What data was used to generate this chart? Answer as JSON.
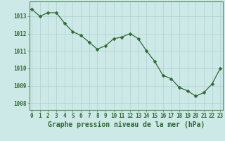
{
  "x": [
    0,
    1,
    2,
    3,
    4,
    5,
    6,
    7,
    8,
    9,
    10,
    11,
    12,
    13,
    14,
    15,
    16,
    17,
    18,
    19,
    20,
    21,
    22,
    23
  ],
  "y": [
    1013.4,
    1013.0,
    1013.2,
    1013.2,
    1012.6,
    1012.1,
    1011.9,
    1011.5,
    1011.1,
    1011.3,
    1011.7,
    1011.8,
    1012.0,
    1011.7,
    1011.0,
    1010.4,
    1009.6,
    1009.4,
    1008.9,
    1008.7,
    1008.4,
    1008.6,
    1009.1,
    1010.0
  ],
  "line_color": "#2d6a2d",
  "marker": "D",
  "marker_size": 2.5,
  "bg_color": "#cce9e8",
  "grid_color": "#afd0cf",
  "tick_label_color": "#2d6a2d",
  "xlabel": "Graphe pression niveau de la mer (hPa)",
  "xlabel_color": "#2d6a2d",
  "ylim": [
    1007.6,
    1013.85
  ],
  "yticks": [
    1008,
    1009,
    1010,
    1011,
    1012,
    1013
  ],
  "xticks": [
    0,
    1,
    2,
    3,
    4,
    5,
    6,
    7,
    8,
    9,
    10,
    11,
    12,
    13,
    14,
    15,
    16,
    17,
    18,
    19,
    20,
    21,
    22,
    23
  ],
  "tick_fontsize": 5.5,
  "xlabel_fontsize": 7.0,
  "spine_color": "#5a8a5a"
}
